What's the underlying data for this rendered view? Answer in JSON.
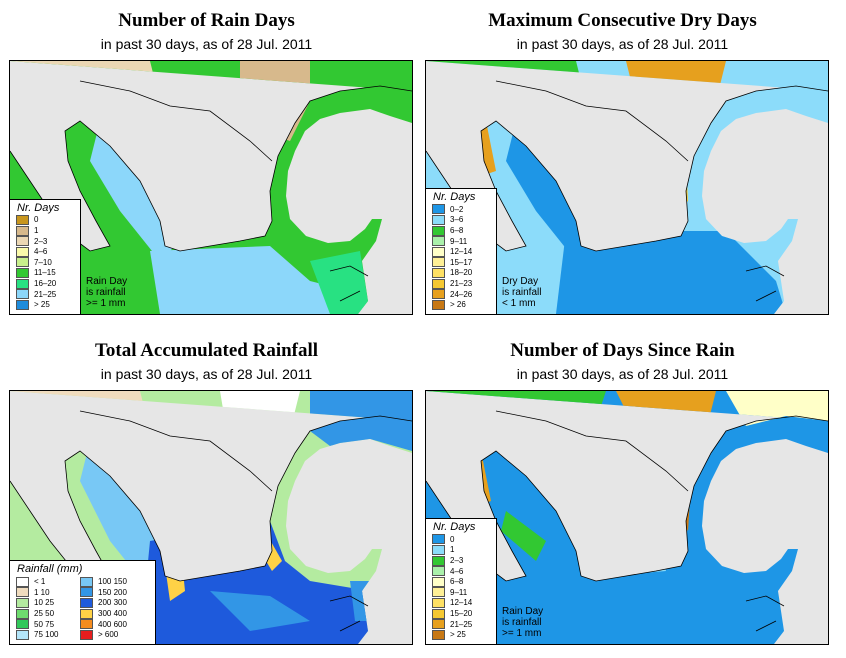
{
  "panels": [
    {
      "title": "Number of Rain Days",
      "subtitle": "in past 30 days, as of  28 Jul. 2011",
      "legend_title": "Nr. Days",
      "legend": [
        {
          "label": "0",
          "color": "#c8961e"
        },
        {
          "label": "1",
          "color": "#d7b98c"
        },
        {
          "label": "2–3",
          "color": "#ebd7b4"
        },
        {
          "label": "4–6",
          "color": "#fafaaa"
        },
        {
          "label": "7–10",
          "color": "#c8f08c"
        },
        {
          "label": "11–15",
          "color": "#32c832"
        },
        {
          "label": "16–20",
          "color": "#28e182"
        },
        {
          "label": "21–25",
          "color": "#8cd7fa"
        },
        {
          "label": "> 25",
          "color": "#1e8cdc"
        }
      ],
      "note": [
        "Rain Day",
        "is rainfall",
        ">= 1 mm"
      ]
    },
    {
      "title": "Maximum Consecutive Dry Days",
      "subtitle": "in past 30 days, as of  28 Jul. 2011",
      "legend_title": "Nr. Days",
      "legend": [
        {
          "label": "0–2",
          "color": "#1e96e6"
        },
        {
          "label": "3–6",
          "color": "#8cdcfa"
        },
        {
          "label": "6–8",
          "color": "#32c832"
        },
        {
          "label": "9–11",
          "color": "#aaf0aa"
        },
        {
          "label": "12–14",
          "color": "#ffffc8"
        },
        {
          "label": "15–17",
          "color": "#fff096"
        },
        {
          "label": "18–20",
          "color": "#ffe164"
        },
        {
          "label": "21–23",
          "color": "#f5c832"
        },
        {
          "label": "24–26",
          "color": "#e6a01e"
        },
        {
          "label": "> 26",
          "color": "#c87814"
        }
      ],
      "note": [
        "Dry Day",
        "is rainfall",
        "< 1 mm"
      ]
    },
    {
      "title": "Total Accumulated Rainfall",
      "subtitle": "in past 30 days, as of  28 Jul. 2011",
      "legend_title": "Rainfall (mm)",
      "legend_left": [
        {
          "label": "< 1",
          "color": "#ffffff"
        },
        {
          "label": "1    10",
          "color": "#f0dcbe"
        },
        {
          "label": "10    25",
          "color": "#b4eba0"
        },
        {
          "label": "25    50",
          "color": "#6edc6e"
        },
        {
          "label": "50    75",
          "color": "#32c85a"
        },
        {
          "label": "75  100",
          "color": "#b4e6fa"
        }
      ],
      "legend_right": [
        {
          "label": "100  150",
          "color": "#78c8f5"
        },
        {
          "label": "150  200",
          "color": "#3296e6"
        },
        {
          "label": "200  300",
          "color": "#1e5adc"
        },
        {
          "label": "300  400",
          "color": "#ffd246"
        },
        {
          "label": "400  600",
          "color": "#f58c1e"
        },
        {
          "label": "> 600",
          "color": "#e61e1e"
        }
      ]
    },
    {
      "title": "Number of Days Since Rain",
      "subtitle": "in past 30 days, as of  28 Jul. 2011",
      "legend_title": "Nr. Days",
      "legend": [
        {
          "label": "0",
          "color": "#1e96e6"
        },
        {
          "label": "1",
          "color": "#8cdcfa"
        },
        {
          "label": "2–3",
          "color": "#32c832"
        },
        {
          "label": "4–6",
          "color": "#aaf0aa"
        },
        {
          "label": "6–8",
          "color": "#ffffc8"
        },
        {
          "label": "9–11",
          "color": "#fff096"
        },
        {
          "label": "12–14",
          "color": "#ffe164"
        },
        {
          "label": "15–20",
          "color": "#f5c832"
        },
        {
          "label": "21–25",
          "color": "#e6a01e"
        },
        {
          "label": "> 25",
          "color": "#c87814"
        }
      ],
      "note": [
        "Rain Day",
        "is rainfall",
        ">= 1 mm"
      ]
    }
  ],
  "colors": {
    "ocean": "#e6e6e6",
    "border": "#000000"
  }
}
